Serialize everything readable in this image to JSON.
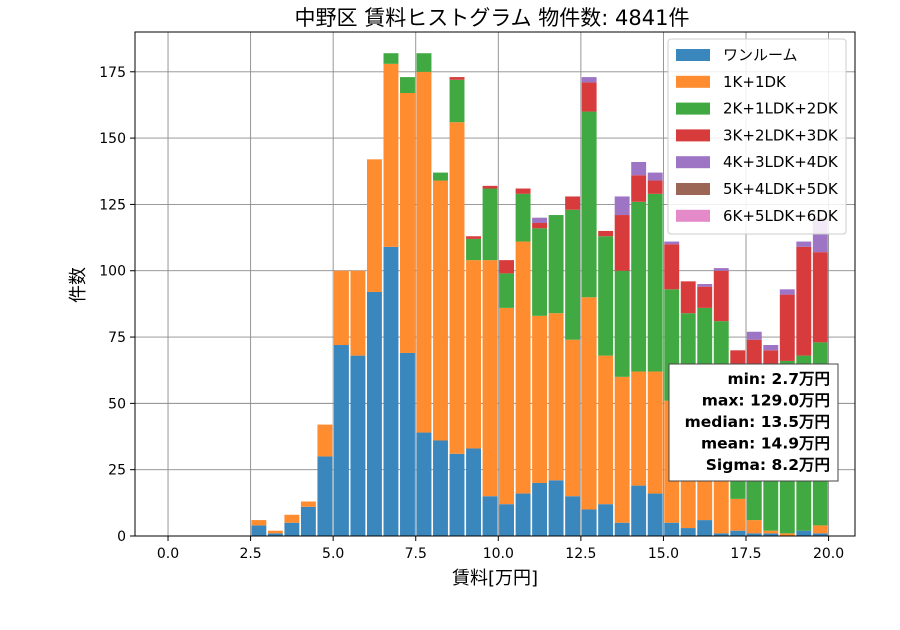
{
  "chart_data": {
    "type": "bar",
    "stacked": true,
    "title": "中野区 賃料ヒストグラム  物件数: 4841件",
    "xlabel": "賃料[万円]",
    "ylabel": "件数",
    "xlim": [
      -1.0,
      20.8
    ],
    "ylim": [
      0,
      190
    ],
    "bin_width": 0.5,
    "x_ticks": [
      0,
      2.5,
      5,
      7.5,
      10,
      12.5,
      15,
      17.5,
      20
    ],
    "x_tick_labels": [
      "0.0",
      "2.5",
      "5.0",
      "7.5",
      "10.0",
      "12.5",
      "15.0",
      "17.5",
      "20.0"
    ],
    "y_ticks": [
      0,
      25,
      50,
      75,
      100,
      125,
      150,
      175
    ],
    "y_tick_labels": [
      "0",
      "25",
      "50",
      "75",
      "100",
      "125",
      "150",
      "175"
    ],
    "grid": true,
    "legend_position": "top-right",
    "bin_starts": [
      2.5,
      3.0,
      3.5,
      4.0,
      4.5,
      5.0,
      5.5,
      6.0,
      6.5,
      7.0,
      7.5,
      8.0,
      8.5,
      9.0,
      9.5,
      10.0,
      10.5,
      11.0,
      11.5,
      12.0,
      12.5,
      13.0,
      13.5,
      14.0,
      14.5,
      15.0,
      15.5,
      16.0,
      16.5,
      17.0,
      17.5,
      18.0,
      18.5,
      19.0,
      19.5
    ],
    "series": [
      {
        "name": "ワンルーム",
        "color": "#3a87bd",
        "values": [
          4,
          1,
          5,
          11,
          30,
          72,
          68,
          92,
          109,
          69,
          39,
          36,
          31,
          33,
          15,
          12,
          16,
          20,
          21,
          15,
          10,
          12,
          5,
          19,
          16,
          5,
          3,
          6,
          1,
          2,
          1,
          1,
          0,
          2,
          1
        ]
      },
      {
        "name": "1K+1DK",
        "color": "#ff8c2e",
        "values": [
          2,
          1,
          3,
          2,
          12,
          28,
          32,
          50,
          69,
          98,
          136,
          98,
          125,
          71,
          89,
          74,
          95,
          63,
          63,
          59,
          80,
          56,
          55,
          43,
          46,
          46,
          35,
          30,
          25,
          12,
          5,
          1,
          1,
          0,
          3
        ]
      },
      {
        "name": "2K+1LDK+2DK",
        "color": "#41a941",
        "values": [
          0,
          0,
          0,
          0,
          0,
          0,
          0,
          0,
          4,
          6,
          7,
          3,
          16,
          8,
          27,
          13,
          18,
          33,
          37,
          49,
          70,
          45,
          40,
          64,
          67,
          42,
          46,
          50,
          55,
          40,
          56,
          60,
          65,
          66,
          69
        ]
      },
      {
        "name": "3K+2LDK+3DK",
        "color": "#d73b3c",
        "values": [
          0,
          0,
          0,
          0,
          0,
          0,
          0,
          0,
          0,
          0,
          0,
          0,
          1,
          1,
          1,
          5,
          2,
          2,
          0,
          5,
          11,
          2,
          21,
          10,
          5,
          17,
          12,
          8,
          19,
          16,
          12,
          8,
          25,
          41,
          34
        ]
      },
      {
        "name": "4K+3LDK+4DK",
        "color": "#9e75c4",
        "values": [
          0,
          0,
          0,
          0,
          0,
          0,
          0,
          0,
          0,
          0,
          0,
          0,
          0,
          0,
          0,
          0,
          0,
          2,
          0,
          0,
          2,
          0,
          7,
          5,
          3,
          1,
          0,
          1,
          1,
          0,
          3,
          2,
          2,
          2,
          12
        ]
      },
      {
        "name": "5K+4LDK+5DK",
        "color": "#9c6656",
        "values": [
          0,
          0,
          0,
          0,
          0,
          0,
          0,
          0,
          0,
          0,
          0,
          0,
          0,
          0,
          0,
          0,
          0,
          0,
          0,
          0,
          0,
          0,
          0,
          0,
          0,
          0,
          0,
          0,
          0,
          0,
          0,
          0,
          0,
          0,
          1
        ]
      },
      {
        "name": "6K+5LDK+6DK",
        "color": "#e58ac9",
        "values": [
          0,
          0,
          0,
          0,
          0,
          0,
          0,
          0,
          0,
          0,
          0,
          0,
          0,
          0,
          0,
          0,
          0,
          0,
          0,
          0,
          0,
          0,
          0,
          0,
          0,
          0,
          0,
          0,
          0,
          0,
          0,
          0,
          0,
          0,
          0
        ]
      }
    ],
    "stats_box": {
      "lines": [
        "min: 2.7万円",
        "max: 129.0万円",
        "median: 13.5万円",
        "mean: 14.9万円",
        "Sigma: 8.2万円"
      ]
    }
  }
}
